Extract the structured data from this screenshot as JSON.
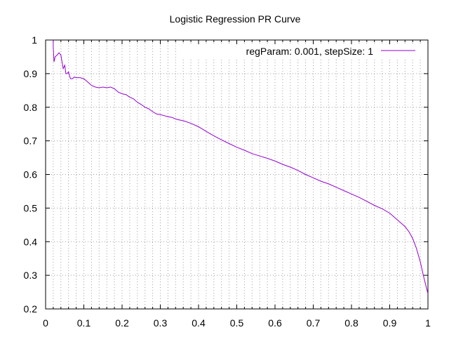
{
  "chart_data": {
    "type": "line",
    "title": "Logistic Regression PR Curve",
    "xlabel": "",
    "ylabel": "",
    "xlim": [
      0,
      1
    ],
    "ylim": [
      0.2,
      1
    ],
    "xticks": [
      0,
      0.1,
      0.2,
      0.3,
      0.4,
      0.5,
      0.6,
      0.7,
      0.8,
      0.9,
      1
    ],
    "xtick_labels": [
      "0",
      "0.1",
      "0.2",
      "0.3",
      "0.4",
      "0.5",
      "0.6",
      "0.7",
      "0.8",
      "0.9",
      "1"
    ],
    "yticks": [
      0.2,
      0.3,
      0.4,
      0.5,
      0.6,
      0.7,
      0.8,
      0.9,
      1
    ],
    "ytick_labels": [
      "0.2",
      "0.3",
      "0.4",
      "0.5",
      "0.6",
      "0.7",
      "0.8",
      "0.9",
      "1"
    ],
    "grid": true,
    "legend_position": "top-right",
    "series": [
      {
        "name": "regParam: 0.001, stepSize: 1",
        "color": "#9400d3",
        "x": [
          0.02,
          0.02,
          0.022,
          0.025,
          0.03,
          0.035,
          0.04,
          0.043,
          0.046,
          0.05,
          0.053,
          0.056,
          0.06,
          0.065,
          0.07,
          0.075,
          0.08,
          0.09,
          0.1,
          0.11,
          0.12,
          0.13,
          0.14,
          0.15,
          0.16,
          0.17,
          0.18,
          0.19,
          0.2,
          0.21,
          0.22,
          0.23,
          0.24,
          0.25,
          0.26,
          0.27,
          0.28,
          0.29,
          0.3,
          0.31,
          0.32,
          0.33,
          0.34,
          0.35,
          0.36,
          0.38,
          0.4,
          0.42,
          0.44,
          0.46,
          0.48,
          0.5,
          0.52,
          0.54,
          0.56,
          0.58,
          0.6,
          0.62,
          0.64,
          0.66,
          0.68,
          0.7,
          0.72,
          0.74,
          0.76,
          0.78,
          0.8,
          0.82,
          0.84,
          0.86,
          0.88,
          0.9,
          0.92,
          0.94,
          0.95,
          0.96,
          0.97,
          0.98,
          0.99,
          1.0
        ],
        "y": [
          1.0,
          0.98,
          0.935,
          0.95,
          0.955,
          0.962,
          0.955,
          0.935,
          0.915,
          0.925,
          0.9,
          0.9,
          0.905,
          0.885,
          0.885,
          0.89,
          0.888,
          0.888,
          0.885,
          0.875,
          0.865,
          0.86,
          0.858,
          0.86,
          0.858,
          0.86,
          0.855,
          0.845,
          0.84,
          0.838,
          0.83,
          0.825,
          0.815,
          0.808,
          0.8,
          0.795,
          0.787,
          0.78,
          0.778,
          0.775,
          0.772,
          0.77,
          0.765,
          0.762,
          0.76,
          0.752,
          0.742,
          0.728,
          0.715,
          0.703,
          0.692,
          0.681,
          0.672,
          0.662,
          0.655,
          0.648,
          0.64,
          0.63,
          0.622,
          0.612,
          0.6,
          0.59,
          0.58,
          0.572,
          0.562,
          0.552,
          0.542,
          0.532,
          0.52,
          0.508,
          0.498,
          0.485,
          0.465,
          0.445,
          0.43,
          0.41,
          0.38,
          0.34,
          0.29,
          0.245
        ]
      }
    ]
  }
}
